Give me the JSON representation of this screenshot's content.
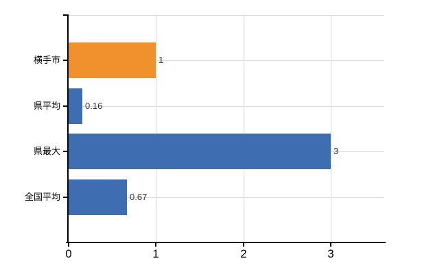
{
  "chart_data": {
    "type": "bar",
    "orientation": "horizontal",
    "title": "",
    "xlabel": "",
    "ylabel": "",
    "categories": [
      "横手市",
      "県平均",
      "県最大",
      "全国平均"
    ],
    "values": [
      1,
      0.16,
      3,
      0.67
    ],
    "value_labels": [
      "1",
      "0.16",
      "3",
      "0.67"
    ],
    "bar_colors": [
      "#f0912d",
      "#3e6eb1",
      "#3e6eb1",
      "#3e6eb1"
    ],
    "x_ticks": [
      "0",
      "1",
      "2",
      "3"
    ],
    "x_tick_values": [
      0,
      1,
      2,
      3
    ],
    "xlim": [
      0,
      3.61
    ],
    "grid": true,
    "legend": false
  },
  "style": {
    "background": "#ffffff",
    "axis_color": "#000000",
    "grid_color": "#d8dcd8",
    "value_label_color": "#333333",
    "category_label_color": "#000000",
    "highlight_bar_color": "#f0912d",
    "default_bar_color": "#3e6eb1"
  }
}
